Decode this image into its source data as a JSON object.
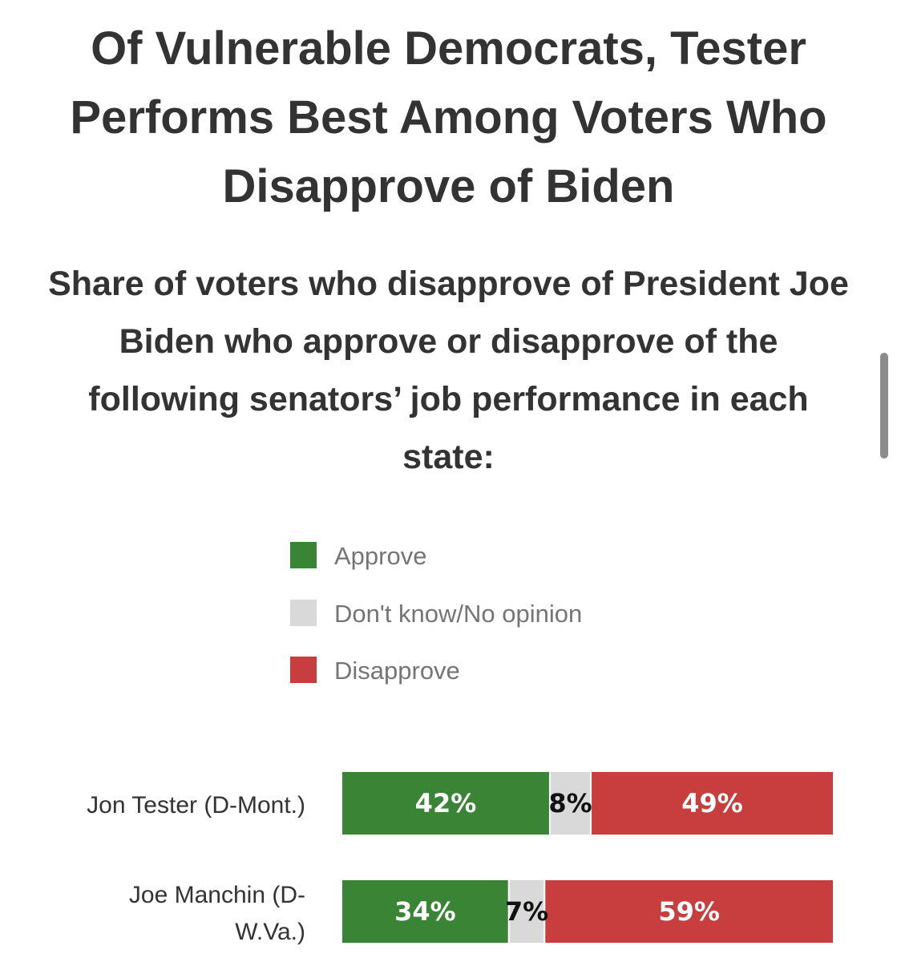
{
  "chart_data": {
    "type": "bar",
    "stacked": true,
    "orientation": "horizontal",
    "title": "Of Vulnerable Democrats, Tester Performs Best Among Voters Who Disapprove of Biden",
    "subtitle": "Share of voters who disapprove of President Joe Biden who approve or disapprove of the following senators’ job performance in each state:",
    "categories": [
      "Jon Tester (D-Mont.)",
      "Joe Manchin (D-W.Va.)"
    ],
    "category_lines": [
      [
        "Jon Tester (D-Mont.)"
      ],
      [
        "Joe Manchin (D-",
        "W.Va.)"
      ]
    ],
    "series": [
      {
        "name": "Approve",
        "color": "#3a8535",
        "values": [
          42,
          34
        ],
        "labels": [
          "42%",
          "34%"
        ]
      },
      {
        "name": "Don't know/No opinion",
        "color": "#d9d9d9",
        "values": [
          8,
          7
        ],
        "labels": [
          "8%",
          "7%"
        ]
      },
      {
        "name": "Disapprove",
        "color": "#c83e3e",
        "values": [
          49,
          59
        ],
        "labels": [
          "49%",
          "59%"
        ]
      }
    ],
    "legend_position": "top-center",
    "grid": false
  },
  "ui": {
    "scrollbar_present": true
  }
}
